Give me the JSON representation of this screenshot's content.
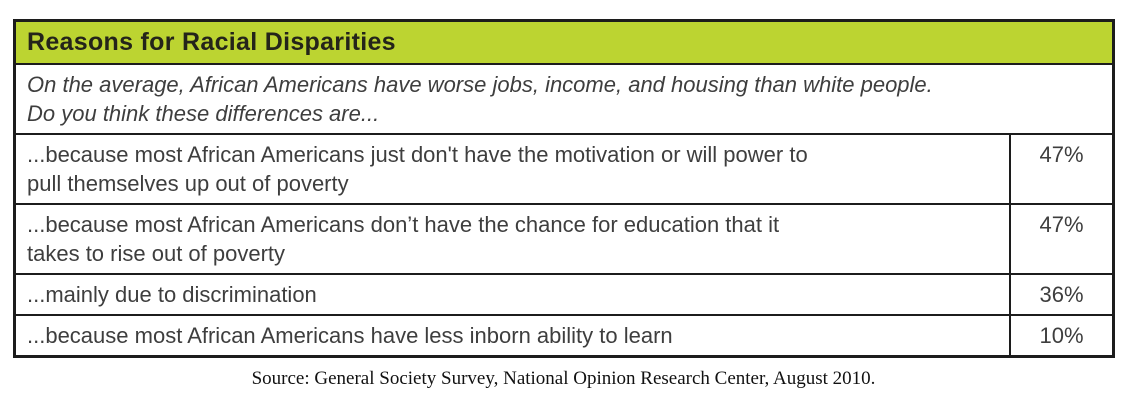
{
  "chart_data": {
    "type": "table",
    "title": "Reasons for Racial Disparities",
    "question": "On the average, African Americans have worse jobs, income, and housing than white people. Do you think these differences are...",
    "categories": [
      "...because most African Americans just don't have the motivation or will power to pull themselves up out of poverty",
      "...because most African Americans don’t have the chance for education that it takes to rise out of poverty",
      "...mainly due to discrimination",
      "...because most African Americans have less inborn ability to learn"
    ],
    "values": [
      47,
      47,
      36,
      10
    ],
    "unit": "%",
    "source": "Source: General Society Survey, National Opinion Research Center, August 2010."
  },
  "table": {
    "title": "Reasons for Racial Disparities",
    "subtitle": "On the average, African Americans have worse jobs, income, and housing than white people.\nDo you think these differences are...",
    "rows": [
      {
        "reason": "...because most African Americans just don't have the motivation or will power to\npull themselves up out of poverty",
        "value": "47%"
      },
      {
        "reason": "...because most African Americans don’t have the chance for education that it\ntakes to rise out of poverty",
        "value": "47%"
      },
      {
        "reason": "...mainly due to discrimination",
        "value": "36%"
      },
      {
        "reason": "...because most African Americans have less inborn ability to learn",
        "value": "10%"
      }
    ],
    "source": "Source: General Society Survey, National Opinion Research Center, August 2010."
  },
  "colors": {
    "header_bg": "#bcd431",
    "border": "#1c1c1c",
    "text": "#3e3e3e",
    "title_text": "#24241a",
    "source_text": "#111111"
  }
}
